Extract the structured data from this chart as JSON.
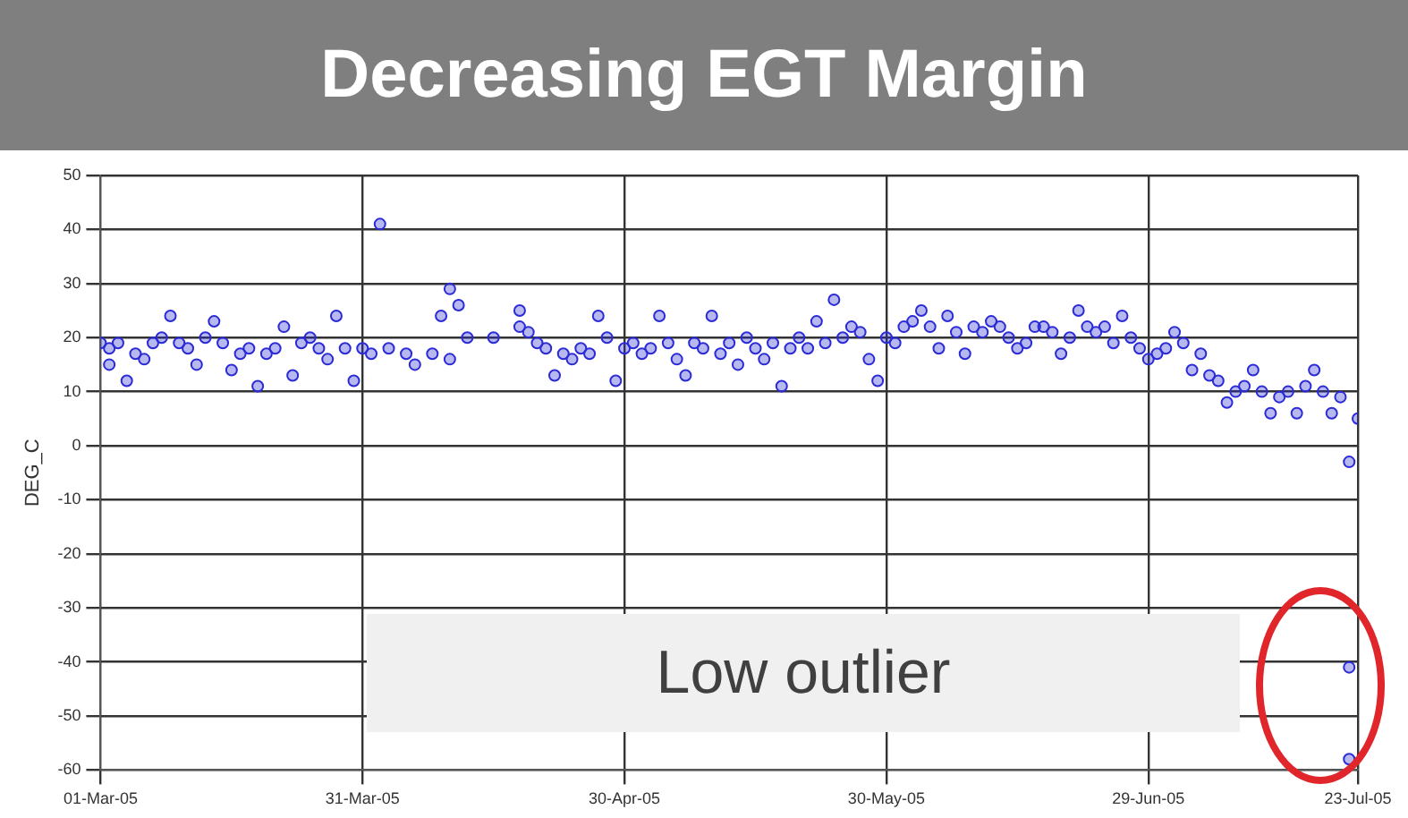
{
  "chart_data": {
    "type": "scatter",
    "title": "Decreasing EGT Margin",
    "ylabel": "DEG_C",
    "annotations": [
      "Low outlier"
    ],
    "ylim": [
      -60,
      50
    ],
    "yticks": [
      50,
      40,
      30,
      20,
      10,
      0,
      -10,
      -20,
      -30,
      -40,
      -50,
      -60
    ],
    "xlim": [
      "2005-03-01",
      "2005-07-23"
    ],
    "xticks": [
      {
        "value": "2005-03-01",
        "label": "01-Mar-05"
      },
      {
        "value": "2005-03-31",
        "label": "31-Mar-05"
      },
      {
        "value": "2005-04-30",
        "label": "30-Apr-05"
      },
      {
        "value": "2005-05-30",
        "label": "30-May-05"
      },
      {
        "value": "2005-06-29",
        "label": "29-Jun-05"
      },
      {
        "value": "2005-07-23",
        "label": "23-Jul-05"
      }
    ],
    "grid": true,
    "marker": "circle",
    "series": [
      {
        "color": "#2a2ad6",
        "x": [
          "2005-03-01",
          "2005-03-02",
          "2005-03-02",
          "2005-03-03",
          "2005-03-04",
          "2005-03-05",
          "2005-03-06",
          "2005-03-07",
          "2005-03-08",
          "2005-03-09",
          "2005-03-10",
          "2005-03-11",
          "2005-03-12",
          "2005-03-13",
          "2005-03-14",
          "2005-03-15",
          "2005-03-16",
          "2005-03-17",
          "2005-03-18",
          "2005-03-19",
          "2005-03-20",
          "2005-03-21",
          "2005-03-22",
          "2005-03-23",
          "2005-03-24",
          "2005-03-25",
          "2005-03-26",
          "2005-03-27",
          "2005-03-28",
          "2005-03-29",
          "2005-03-30",
          "2005-03-31",
          "2005-04-01",
          "2005-04-02",
          "2005-04-03",
          "2005-04-05",
          "2005-04-06",
          "2005-04-08",
          "2005-04-09",
          "2005-04-10",
          "2005-04-10",
          "2005-04-11",
          "2005-04-12",
          "2005-04-15",
          "2005-04-18",
          "2005-04-18",
          "2005-04-19",
          "2005-04-20",
          "2005-04-21",
          "2005-04-22",
          "2005-04-23",
          "2005-04-24",
          "2005-04-25",
          "2005-04-26",
          "2005-04-27",
          "2005-04-28",
          "2005-04-29",
          "2005-04-30",
          "2005-05-01",
          "2005-05-02",
          "2005-05-03",
          "2005-05-04",
          "2005-05-05",
          "2005-05-06",
          "2005-05-07",
          "2005-05-08",
          "2005-05-09",
          "2005-05-10",
          "2005-05-11",
          "2005-05-12",
          "2005-05-13",
          "2005-05-14",
          "2005-05-15",
          "2005-05-16",
          "2005-05-17",
          "2005-05-18",
          "2005-05-19",
          "2005-05-20",
          "2005-05-21",
          "2005-05-22",
          "2005-05-23",
          "2005-05-24",
          "2005-05-25",
          "2005-05-26",
          "2005-05-27",
          "2005-05-28",
          "2005-05-29",
          "2005-05-30",
          "2005-05-31",
          "2005-06-01",
          "2005-06-02",
          "2005-06-03",
          "2005-06-04",
          "2005-06-05",
          "2005-06-06",
          "2005-06-07",
          "2005-06-08",
          "2005-06-09",
          "2005-06-10",
          "2005-06-11",
          "2005-06-12",
          "2005-06-13",
          "2005-06-14",
          "2005-06-15",
          "2005-06-16",
          "2005-06-17",
          "2005-06-18",
          "2005-06-19",
          "2005-06-20",
          "2005-06-21",
          "2005-06-22",
          "2005-06-23",
          "2005-06-24",
          "2005-06-25",
          "2005-06-26",
          "2005-06-27",
          "2005-06-28",
          "2005-06-29",
          "2005-06-30",
          "2005-07-01",
          "2005-07-02",
          "2005-07-03",
          "2005-07-04",
          "2005-07-05",
          "2005-07-06",
          "2005-07-07",
          "2005-07-08",
          "2005-07-09",
          "2005-07-10",
          "2005-07-11",
          "2005-07-12",
          "2005-07-13",
          "2005-07-14",
          "2005-07-15",
          "2005-07-16",
          "2005-07-17",
          "2005-07-18",
          "2005-07-19",
          "2005-07-20",
          "2005-07-21",
          "2005-07-22",
          "2005-07-22",
          "2005-07-22",
          "2005-07-23"
        ],
        "values": [
          19,
          15,
          18,
          19,
          12,
          17,
          16,
          19,
          20,
          24,
          19,
          18,
          15,
          20,
          23,
          19,
          14,
          17,
          18,
          11,
          17,
          18,
          22,
          13,
          19,
          20,
          18,
          16,
          24,
          18,
          12,
          18,
          17,
          41,
          18,
          17,
          15,
          17,
          24,
          16,
          29,
          26,
          20,
          20,
          22,
          25,
          21,
          19,
          18,
          13,
          17,
          16,
          18,
          17,
          24,
          20,
          12,
          18,
          19,
          17,
          18,
          24,
          19,
          16,
          13,
          19,
          18,
          24,
          17,
          19,
          15,
          20,
          18,
          16,
          19,
          11,
          18,
          20,
          18,
          23,
          19,
          27,
          20,
          22,
          21,
          16,
          12,
          20,
          19,
          22,
          23,
          25,
          22,
          18,
          24,
          21,
          17,
          22,
          21,
          23,
          22,
          20,
          18,
          19,
          22,
          22,
          21,
          17,
          20,
          25,
          22,
          21,
          22,
          19,
          24,
          20,
          18,
          16,
          17,
          18,
          21,
          19,
          14,
          17,
          13,
          12,
          8,
          10,
          11,
          14,
          10,
          6,
          9,
          10,
          6,
          11,
          14,
          10,
          6,
          9,
          -3,
          -41,
          -58,
          5
        ]
      }
    ]
  }
}
